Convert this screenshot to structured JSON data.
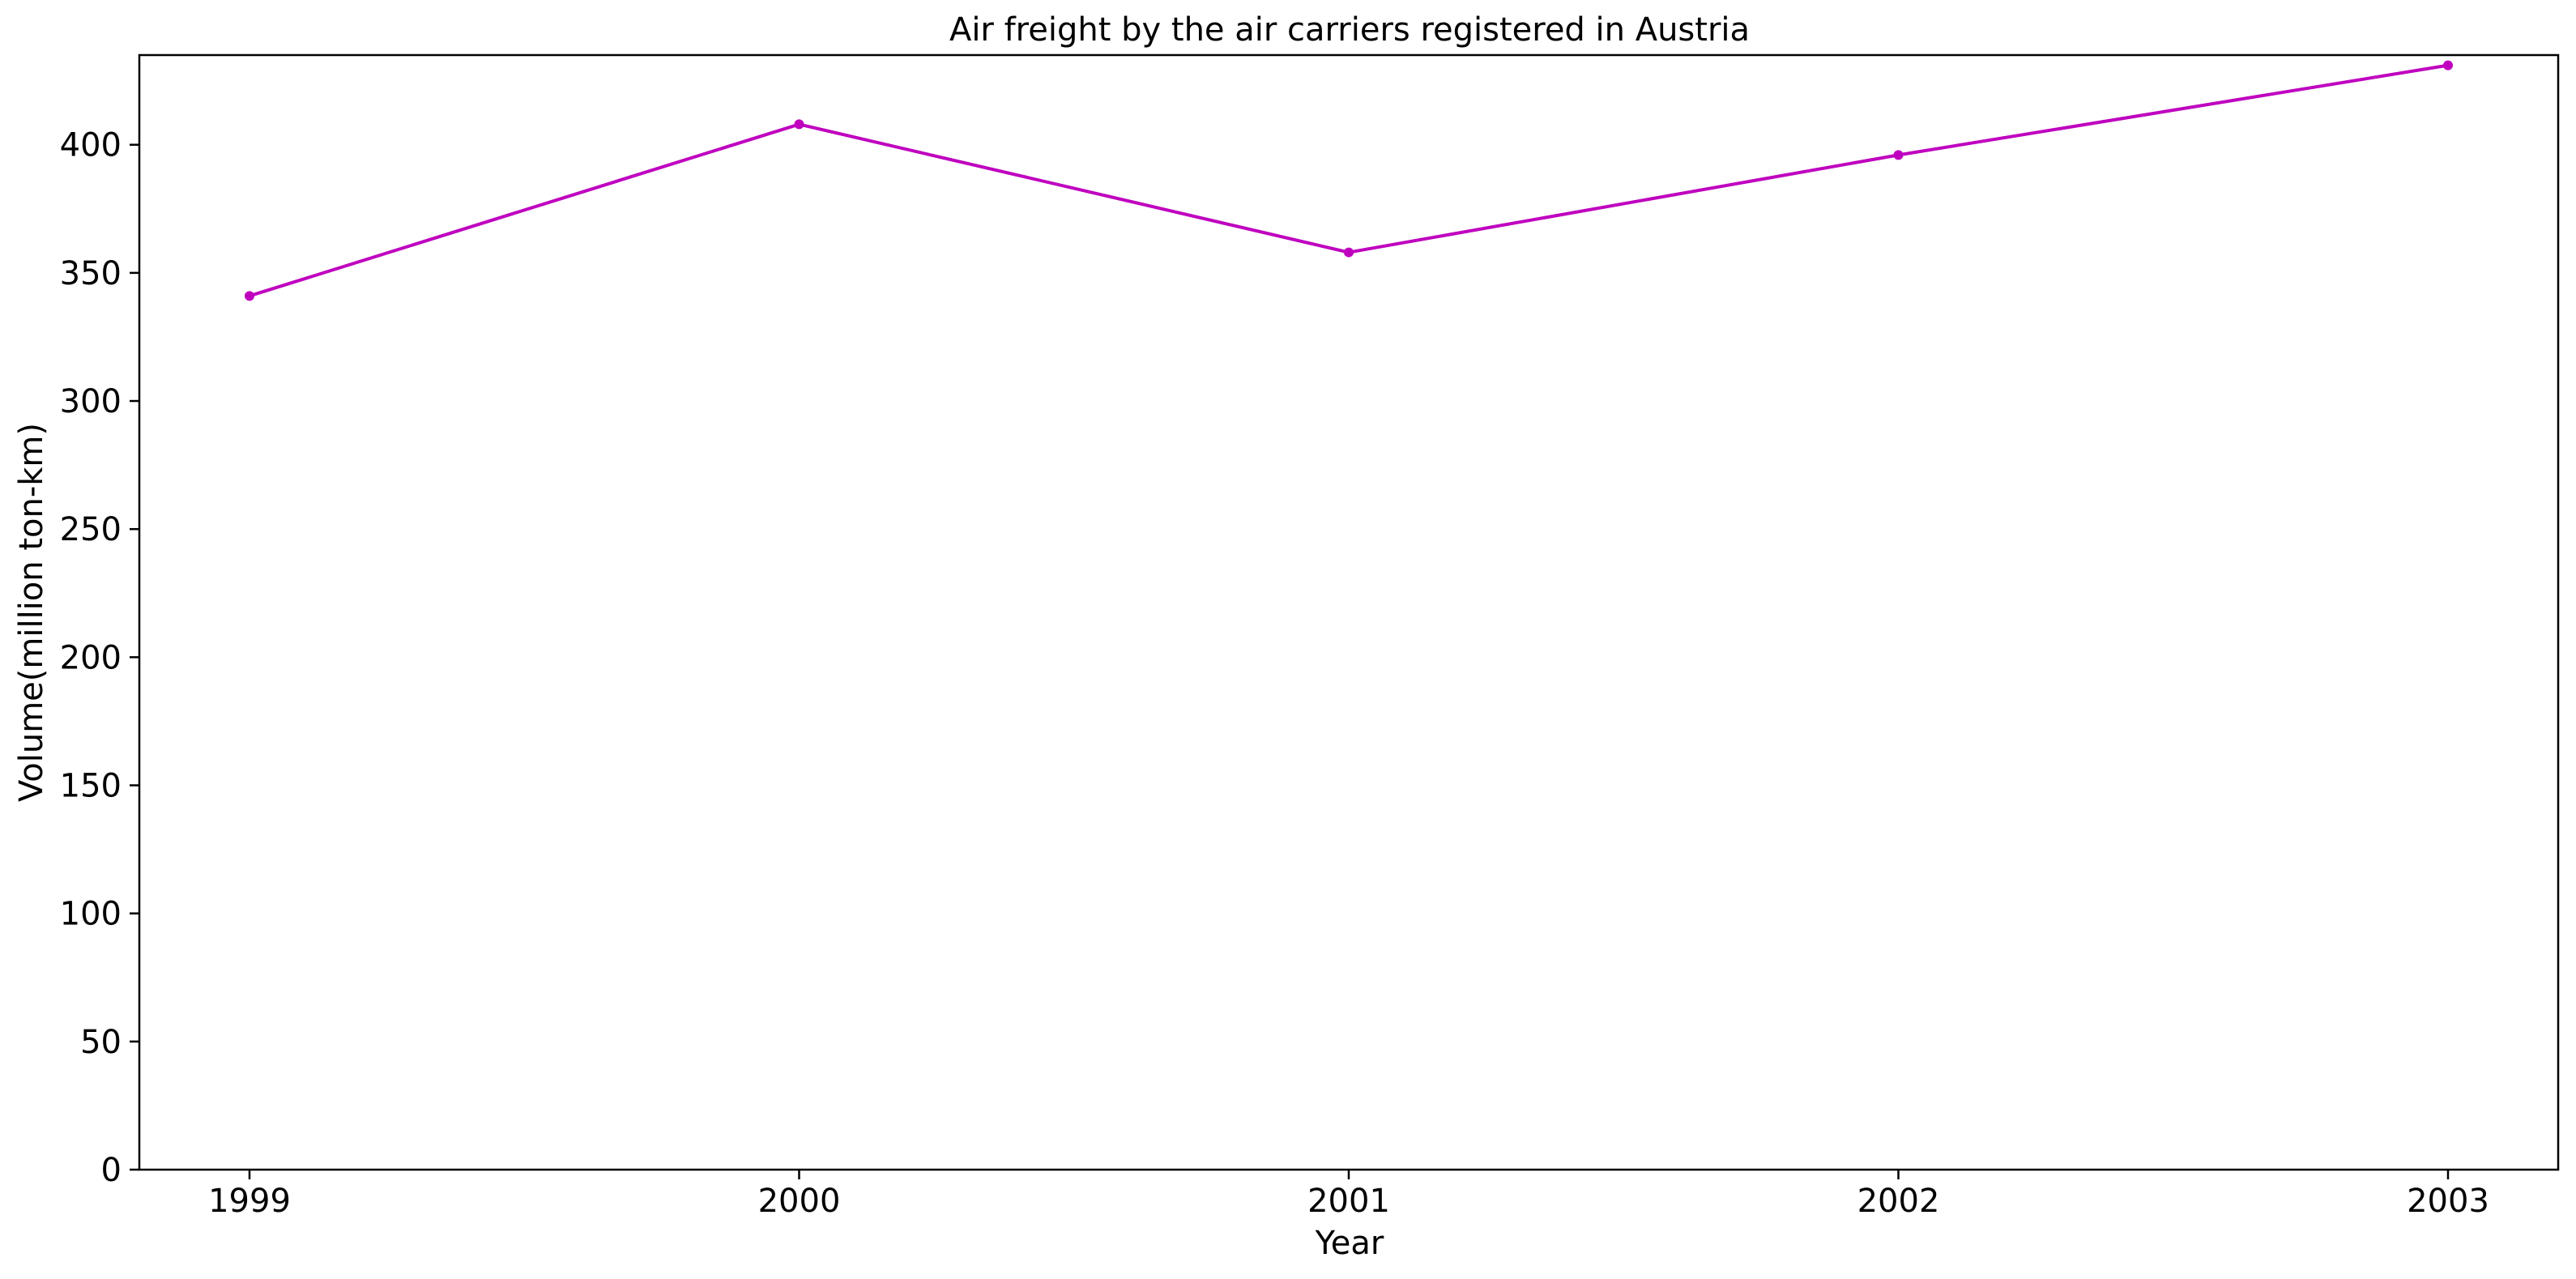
{
  "chart_data": {
    "type": "line",
    "title": "Air freight by the air carriers registered in Austria",
    "xlabel": "Year",
    "ylabel": "Volume(million ton-km)",
    "categories": [
      "1999",
      "2000",
      "2001",
      "2002",
      "2003"
    ],
    "series": [
      {
        "values": [
          341,
          408,
          358,
          396,
          431
        ],
        "color": "#bf00bf"
      }
    ],
    "ylim": [
      0,
      435
    ],
    "yticks": [
      0,
      50,
      100,
      150,
      200,
      250,
      300,
      350,
      400
    ],
    "grid": false,
    "legend": "none",
    "marker": "dot"
  }
}
